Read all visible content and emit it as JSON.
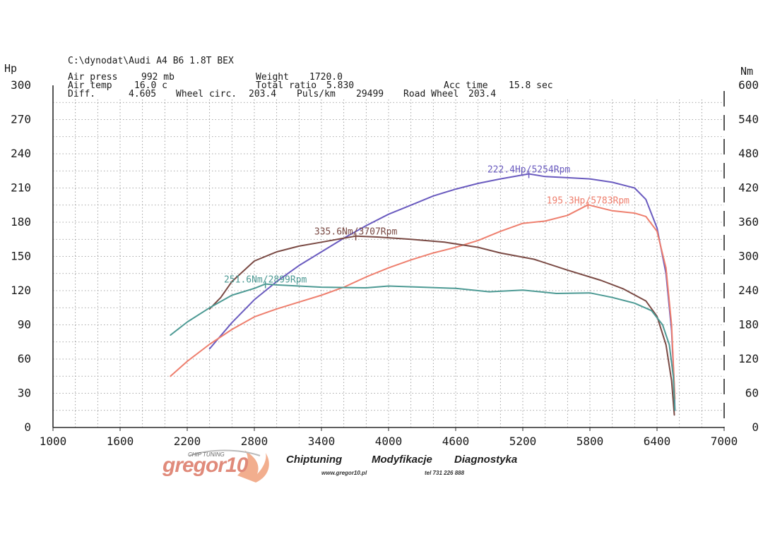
{
  "header": {
    "file_path": "C:\\dynodat\\Audi A4 B6 1.8T BEX",
    "air_press_label": "Air press",
    "air_press_value": "992 mb",
    "weight_label": "Weight",
    "weight_value": "1720.0",
    "air_temp_label": "Air temp",
    "air_temp_value": "16.0 c",
    "total_ratio_label": "Total ratio",
    "total_ratio_value": "5.830",
    "acc_time_label": "Acc time",
    "acc_time_value": "15.8 sec",
    "diff_label": "Diff.",
    "diff_value": "4.605",
    "wheel_circ_label": "Wheel circ.",
    "wheel_circ_value": "203.4",
    "puls_label": "Puls/km",
    "puls_value": "29499",
    "road_wheel_label": "Road Wheel",
    "road_wheel_value": "203.4"
  },
  "branding": {
    "logo_text": "gregor10",
    "logo_subtext": "CHIP TUNING",
    "tagline_1": "Chiptuning",
    "tagline_2": "Modyfikacje",
    "tagline_3": "Diagnostyka",
    "website": "www.gregor10.pl",
    "phone": "tel 731 226 888"
  },
  "chart_data": {
    "type": "line",
    "xlim": [
      1000,
      7000
    ],
    "x_ticks": [
      1000,
      1600,
      2200,
      2800,
      3400,
      4000,
      4600,
      5200,
      5800,
      6400,
      7000
    ],
    "y_left": {
      "label": "Hp",
      "range": [
        0,
        300
      ],
      "ticks": [
        0,
        30,
        60,
        90,
        120,
        150,
        180,
        210,
        240,
        270,
        300
      ]
    },
    "y_right": {
      "label": "Nm",
      "range": [
        0,
        600
      ],
      "ticks": [
        0,
        60,
        120,
        180,
        240,
        300,
        360,
        420,
        480,
        540,
        600
      ]
    },
    "grid": true,
    "series": [
      {
        "axis": "left",
        "color": "#6a5bbf",
        "points": [
          [
            2400,
            69
          ],
          [
            2600,
            92
          ],
          [
            2800,
            112
          ],
          [
            3000,
            128
          ],
          [
            3200,
            142
          ],
          [
            3400,
            154
          ],
          [
            3600,
            166
          ],
          [
            3800,
            177
          ],
          [
            4000,
            187
          ],
          [
            4200,
            195
          ],
          [
            4400,
            203
          ],
          [
            4600,
            209
          ],
          [
            4800,
            214
          ],
          [
            5000,
            218
          ],
          [
            5254,
            222.4
          ],
          [
            5400,
            220
          ],
          [
            5600,
            219
          ],
          [
            5800,
            218
          ],
          [
            6000,
            215
          ],
          [
            6200,
            210
          ],
          [
            6300,
            200
          ],
          [
            6400,
            175
          ],
          [
            6480,
            135
          ],
          [
            6530,
            85
          ],
          [
            6555,
            35
          ],
          [
            6560,
            15
          ]
        ]
      },
      {
        "axis": "left",
        "color": "#ee7f6e",
        "points": [
          [
            2050,
            45
          ],
          [
            2200,
            58
          ],
          [
            2400,
            73
          ],
          [
            2600,
            86
          ],
          [
            2800,
            97
          ],
          [
            3000,
            104
          ],
          [
            3200,
            110
          ],
          [
            3400,
            116
          ],
          [
            3600,
            123
          ],
          [
            3800,
            132
          ],
          [
            4000,
            140
          ],
          [
            4200,
            147
          ],
          [
            4400,
            153
          ],
          [
            4600,
            158
          ],
          [
            4800,
            164
          ],
          [
            5000,
            172
          ],
          [
            5200,
            179
          ],
          [
            5400,
            181
          ],
          [
            5600,
            186
          ],
          [
            5783,
            195.3
          ],
          [
            6000,
            190
          ],
          [
            6200,
            188
          ],
          [
            6300,
            185
          ],
          [
            6400,
            172
          ],
          [
            6480,
            140
          ],
          [
            6530,
            90
          ],
          [
            6560,
            25
          ]
        ]
      },
      {
        "axis": "right",
        "color": "#7a4a44",
        "points": [
          [
            2400,
            208
          ],
          [
            2500,
            228
          ],
          [
            2600,
            256
          ],
          [
            2800,
            292
          ],
          [
            3000,
            308
          ],
          [
            3200,
            318
          ],
          [
            3400,
            325
          ],
          [
            3600,
            332
          ],
          [
            3707,
            335.6
          ],
          [
            3900,
            334
          ],
          [
            4200,
            330
          ],
          [
            4500,
            325
          ],
          [
            4800,
            316
          ],
          [
            5000,
            306
          ],
          [
            5300,
            295
          ],
          [
            5600,
            276
          ],
          [
            5900,
            258
          ],
          [
            6100,
            243
          ],
          [
            6300,
            222
          ],
          [
            6400,
            195
          ],
          [
            6480,
            145
          ],
          [
            6530,
            82
          ],
          [
            6555,
            22
          ]
        ]
      },
      {
        "axis": "right",
        "color": "#4d9a94",
        "points": [
          [
            2050,
            162
          ],
          [
            2200,
            185
          ],
          [
            2400,
            210
          ],
          [
            2600,
            232
          ],
          [
            2800,
            244
          ],
          [
            2899,
            251.6
          ],
          [
            3000,
            250
          ],
          [
            3400,
            246
          ],
          [
            3800,
            245
          ],
          [
            4000,
            248
          ],
          [
            4300,
            246
          ],
          [
            4600,
            244
          ],
          [
            4900,
            238
          ],
          [
            5200,
            241
          ],
          [
            5500,
            235
          ],
          [
            5800,
            236
          ],
          [
            6000,
            228
          ],
          [
            6200,
            218
          ],
          [
            6350,
            205
          ],
          [
            6450,
            180
          ],
          [
            6510,
            145
          ],
          [
            6545,
            90
          ],
          [
            6560,
            30
          ]
        ]
      }
    ],
    "annotations": [
      {
        "text": "222.4Hp/5254Rpm",
        "x": 5254,
        "y": 222.4,
        "axis": "left",
        "color": "#6a5bbf"
      },
      {
        "text": "195.3Hp/5783Rpm",
        "x": 5783,
        "y": 195.3,
        "axis": "left",
        "color": "#ee7f6e"
      },
      {
        "text": "335.6Nm/3707Rpm",
        "x": 3707,
        "y": 335.6,
        "axis": "right",
        "color": "#7a4a44"
      },
      {
        "text": "251.6Nm/2899Rpm",
        "x": 2899,
        "y": 251.6,
        "axis": "right",
        "color": "#4d9a94"
      }
    ]
  }
}
